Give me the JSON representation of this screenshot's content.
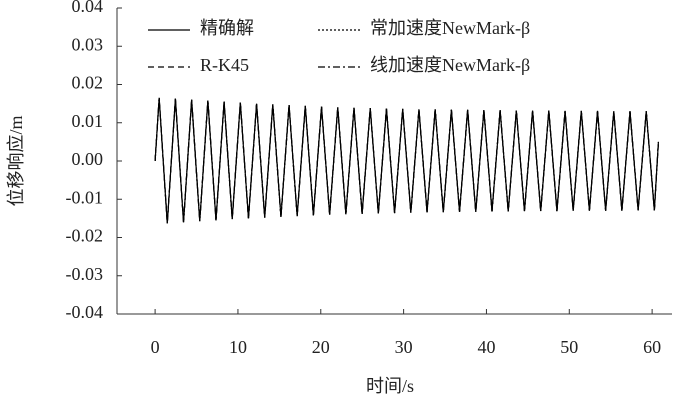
{
  "chart_data": {
    "type": "line",
    "xlabel": "时间/s",
    "ylabel": "位移响应/m",
    "xlim": [
      -4.6,
      62.4
    ],
    "xticks": [
      0,
      10,
      20,
      30,
      40,
      50,
      60
    ],
    "ylim": [
      -0.04,
      0.04
    ],
    "yticks": [
      0.04,
      0.03,
      0.02,
      0.01,
      {
        "value": 0,
        "label": "0.00"
      },
      -0.01,
      -0.02,
      -0.03,
      -0.04
    ],
    "x": [
      0,
      0.49,
      0.98,
      1.47,
      1.96,
      2.45,
      2.94,
      3.43,
      3.92,
      4.41,
      4.9,
      5.39,
      5.88,
      6.37,
      6.86,
      7.35,
      7.84,
      8.33,
      8.82,
      9.31,
      9.8,
      10.29,
      10.78,
      11.27,
      11.76,
      12.25,
      12.74,
      13.23,
      13.72,
      14.21,
      14.7,
      15.19,
      15.68,
      16.17,
      16.66,
      17.15,
      17.64,
      18.13,
      18.62,
      19.11,
      19.6,
      20.09,
      20.58,
      21.07,
      21.56,
      22.05,
      22.54,
      23.03,
      23.52,
      24.01,
      24.5,
      24.99,
      25.48,
      25.97,
      26.46,
      26.95,
      27.44,
      27.93,
      28.42,
      28.91,
      29.4,
      29.89,
      30.38,
      30.87,
      31.36,
      31.85,
      32.34,
      32.83,
      33.32,
      33.81,
      34.3,
      34.79,
      35.28,
      35.77,
      36.26,
      36.75,
      37.24,
      37.73,
      38.22,
      38.71,
      39.2,
      39.69,
      40.18,
      40.67,
      41.16,
      41.65,
      42.14,
      42.63,
      43.12,
      43.61,
      44.1,
      44.59,
      45.08,
      45.57,
      46.06,
      46.55,
      47.04,
      47.53,
      48.02,
      48.51,
      49,
      49.49,
      49.98,
      50.47,
      50.96,
      51.45,
      51.94,
      52.43,
      52.92,
      53.41,
      53.9,
      54.39,
      54.88,
      55.37,
      55.86,
      56.35,
      56.84,
      57.33,
      57.82,
      58.31,
      58.8,
      59.29,
      59.78,
      60.27,
      60.76
    ],
    "series": [
      {
        "name": "精确解",
        "color": "#000000",
        "linestyle": "solid",
        "values": [
          0,
          0.0165,
          0,
          -0.0163,
          0,
          0.0163,
          0,
          -0.016,
          0,
          0.016,
          0,
          -0.0157,
          0,
          0.0158,
          0,
          -0.0155,
          0,
          0.0155,
          0,
          -0.0152,
          0,
          0.0153,
          0,
          -0.015,
          0,
          0.015,
          0,
          -0.0148,
          0,
          0.0148,
          0,
          -0.0146,
          0,
          0.0146,
          0,
          -0.0144,
          0,
          0.0144,
          0,
          -0.0142,
          0,
          0.0142,
          0,
          -0.014,
          0,
          0.014,
          0,
          -0.0139,
          0,
          0.0139,
          0,
          -0.0138,
          0,
          0.0138,
          0,
          -0.0137,
          0,
          0.0137,
          0,
          -0.0136,
          0,
          0.0136,
          0,
          -0.0135,
          0,
          0.0135,
          0,
          -0.0134,
          0,
          0.0135,
          0,
          -0.0134,
          0,
          0.0134,
          0,
          -0.0133,
          0,
          0.0134,
          0,
          -0.0133,
          0,
          0.0133,
          0,
          -0.0132,
          0,
          0.0133,
          0,
          -0.0132,
          0,
          0.0132,
          0,
          -0.0131,
          0,
          0.0132,
          0,
          -0.0131,
          0,
          0.0132,
          0,
          -0.0131,
          0,
          0.0131,
          0,
          -0.013,
          0,
          0.0131,
          0,
          -0.013,
          0,
          0.0131,
          0,
          -0.013,
          0,
          0.013,
          0,
          -0.013,
          0,
          0.013,
          0,
          -0.0129,
          0,
          0.013,
          0,
          -0.0129,
          0.005
        ]
      },
      {
        "name": "R-K45",
        "color": "#000000",
        "linestyle": "dashed",
        "values": [
          0,
          0.0165,
          0,
          -0.0163,
          0,
          0.0163,
          0,
          -0.016,
          0,
          0.016,
          0,
          -0.0157,
          0,
          0.0158,
          0,
          -0.0155,
          0,
          0.0155,
          0,
          -0.0152,
          0,
          0.0153,
          0,
          -0.015,
          0,
          0.015,
          0,
          -0.0148,
          0,
          0.0148,
          0,
          -0.0146,
          0,
          0.0146,
          0,
          -0.0144,
          0,
          0.0144,
          0,
          -0.0142,
          0,
          0.0142,
          0,
          -0.014,
          0,
          0.014,
          0,
          -0.0139,
          0,
          0.0139,
          0,
          -0.0138,
          0,
          0.0138,
          0,
          -0.0137,
          0,
          0.0137,
          0,
          -0.0136,
          0,
          0.0136,
          0,
          -0.0135,
          0,
          0.0135,
          0,
          -0.0134,
          0,
          0.0135,
          0,
          -0.0134,
          0,
          0.0134,
          0,
          -0.0133,
          0,
          0.0134,
          0,
          -0.0133,
          0,
          0.0133,
          0,
          -0.0132,
          0,
          0.0133,
          0,
          -0.0132,
          0,
          0.0132,
          0,
          -0.0131,
          0,
          0.0132,
          0,
          -0.0131,
          0,
          0.0132,
          0,
          -0.0131,
          0,
          0.0131,
          0,
          -0.013,
          0,
          0.0131,
          0,
          -0.013,
          0,
          0.0131,
          0,
          -0.013,
          0,
          0.013,
          0,
          -0.013,
          0,
          0.013,
          0,
          -0.0129,
          0,
          0.013,
          0,
          -0.0129,
          0.005
        ]
      },
      {
        "name": "常加速度NewMark-β",
        "color": "#000000",
        "linestyle": "dotted",
        "values": [
          0,
          0.0165,
          0,
          -0.0163,
          0,
          0.0163,
          0,
          -0.016,
          0,
          0.016,
          0,
          -0.0157,
          0,
          0.0158,
          0,
          -0.0155,
          0,
          0.0155,
          0,
          -0.0152,
          0,
          0.0153,
          0,
          -0.015,
          0,
          0.015,
          0,
          -0.0148,
          0,
          0.0148,
          0,
          -0.0146,
          0,
          0.0146,
          0,
          -0.0144,
          0,
          0.0144,
          0,
          -0.0142,
          0,
          0.0142,
          0,
          -0.014,
          0,
          0.014,
          0,
          -0.0139,
          0,
          0.0139,
          0,
          -0.0138,
          0,
          0.0138,
          0,
          -0.0137,
          0,
          0.0137,
          0,
          -0.0136,
          0,
          0.0136,
          0,
          -0.0135,
          0,
          0.0135,
          0,
          -0.0134,
          0,
          0.0135,
          0,
          -0.0134,
          0,
          0.0134,
          0,
          -0.0133,
          0,
          0.0134,
          0,
          -0.0133,
          0,
          0.0133,
          0,
          -0.0132,
          0,
          0.0133,
          0,
          -0.0132,
          0,
          0.0132,
          0,
          -0.0131,
          0,
          0.0132,
          0,
          -0.0131,
          0,
          0.0132,
          0,
          -0.0131,
          0,
          0.0131,
          0,
          -0.013,
          0,
          0.0131,
          0,
          -0.013,
          0,
          0.0131,
          0,
          -0.013,
          0,
          0.013,
          0,
          -0.013,
          0,
          0.013,
          0,
          -0.0129,
          0,
          0.013,
          0,
          -0.0129,
          0.005
        ]
      },
      {
        "name": "线加速度NewMark-β",
        "color": "#000000",
        "linestyle": "dashdot",
        "values": [
          0,
          0.0165,
          0,
          -0.0163,
          0,
          0.0163,
          0,
          -0.016,
          0,
          0.016,
          0,
          -0.0157,
          0,
          0.0158,
          0,
          -0.0155,
          0,
          0.0155,
          0,
          -0.0152,
          0,
          0.0153,
          0,
          -0.015,
          0,
          0.015,
          0,
          -0.0148,
          0,
          0.0148,
          0,
          -0.0146,
          0,
          0.0146,
          0,
          -0.0144,
          0,
          0.0144,
          0,
          -0.0142,
          0,
          0.0142,
          0,
          -0.014,
          0,
          0.014,
          0,
          -0.0139,
          0,
          0.0139,
          0,
          -0.0138,
          0,
          0.0138,
          0,
          -0.0137,
          0,
          0.0137,
          0,
          -0.0136,
          0,
          0.0136,
          0,
          -0.0135,
          0,
          0.0135,
          0,
          -0.0134,
          0,
          0.0135,
          0,
          -0.0134,
          0,
          0.0134,
          0,
          -0.0133,
          0,
          0.0134,
          0,
          -0.0133,
          0,
          0.0133,
          0,
          -0.0132,
          0,
          0.0133,
          0,
          -0.0132,
          0,
          0.0132,
          0,
          -0.0131,
          0,
          0.0132,
          0,
          -0.0131,
          0,
          0.0132,
          0,
          -0.0131,
          0,
          0.0131,
          0,
          -0.013,
          0,
          0.0131,
          0,
          -0.013,
          0,
          0.0131,
          0,
          -0.013,
          0,
          0.013,
          0,
          -0.013,
          0,
          0.013,
          0,
          -0.0129,
          0,
          0.013,
          0,
          -0.0129,
          0.005
        ]
      }
    ]
  }
}
